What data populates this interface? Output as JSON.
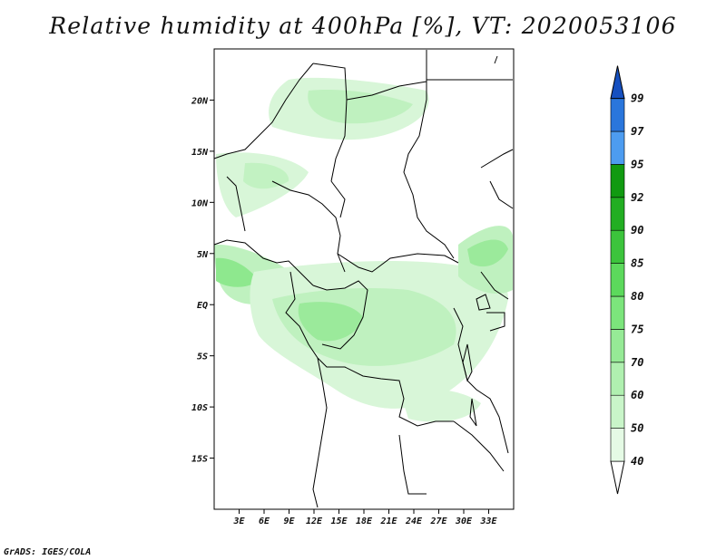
{
  "title": "Relative humidity at 400hPa [%], VT: 2020053106",
  "credit": "GrADS: IGES/COLA",
  "map": {
    "variable": "Relative humidity",
    "level": "400hPa",
    "units": "%",
    "valid_time": "2020053106",
    "lon_range": [
      0,
      36
    ],
    "lat_range": [
      -20,
      25
    ],
    "lat_ticks": [
      {
        "value": 20,
        "label": "20N"
      },
      {
        "value": 15,
        "label": "15N"
      },
      {
        "value": 10,
        "label": "10N"
      },
      {
        "value": 5,
        "label": "5N"
      },
      {
        "value": 0,
        "label": "EQ"
      },
      {
        "value": -5,
        "label": "5S"
      },
      {
        "value": -10,
        "label": "10S"
      },
      {
        "value": -15,
        "label": "15S"
      }
    ],
    "lon_ticks": [
      {
        "value": 3,
        "label": "3E"
      },
      {
        "value": 6,
        "label": "6E"
      },
      {
        "value": 9,
        "label": "9E"
      },
      {
        "value": 12,
        "label": "12E"
      },
      {
        "value": 15,
        "label": "15E"
      },
      {
        "value": 18,
        "label": "18E"
      },
      {
        "value": 21,
        "label": "21E"
      },
      {
        "value": 24,
        "label": "24E"
      },
      {
        "value": 27,
        "label": "27E"
      },
      {
        "value": 30,
        "label": "30E"
      },
      {
        "value": 33,
        "label": "33E"
      }
    ]
  },
  "colorbar": {
    "levels": [
      "40",
      "50",
      "60",
      "70",
      "75",
      "80",
      "85",
      "90",
      "92",
      "95",
      "97",
      "99"
    ],
    "colors": [
      "#ffffff",
      "#e5fae5",
      "#c9f5c9",
      "#b0f0b0",
      "#96ea96",
      "#7ce57c",
      "#5cd95c",
      "#3cc43c",
      "#22ae22",
      "#119a11",
      "#4d9cf0",
      "#2a76dc",
      "#1650c0"
    ]
  }
}
